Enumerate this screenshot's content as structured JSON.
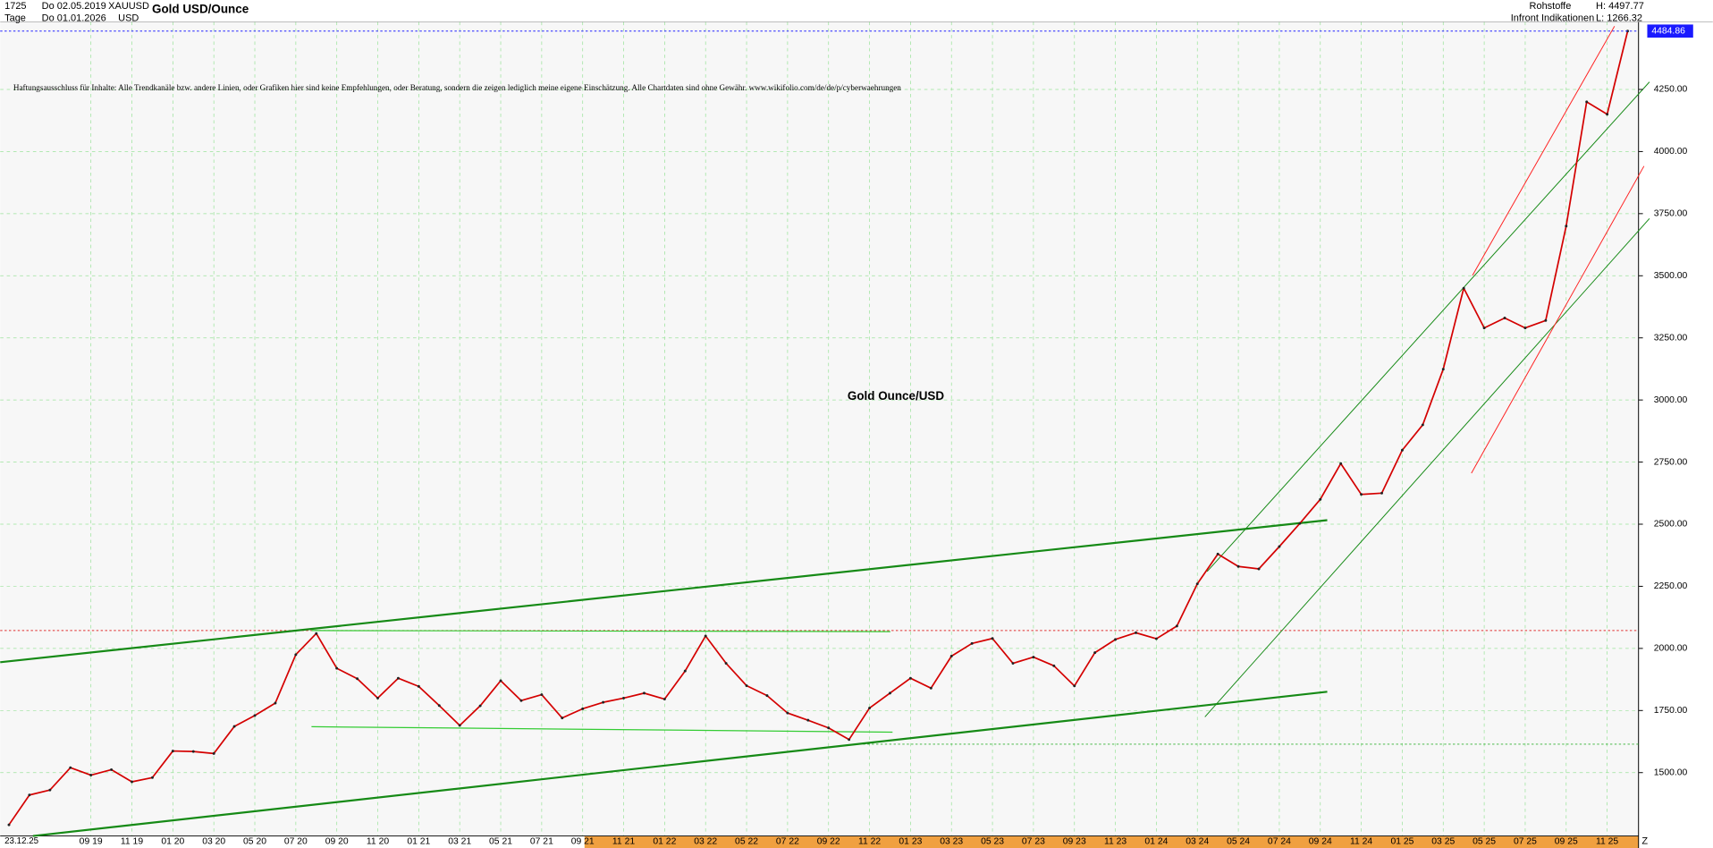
{
  "header": {
    "bars": "1725",
    "from_date": "Do 02.05.2019",
    "symbol": "XAUUSD",
    "title": "Gold USD/Ounce",
    "period": "Tage",
    "to_date": "Do 01.01.2026",
    "currency": "USD",
    "category": "Rohstoffe",
    "high": "H: 4497.77",
    "source": "Infront Indikationen",
    "low": "L: 1266.32"
  },
  "disclaimer": "Haftungsausschluss für Inhalte: Alle Trendkanäle bzw. andere Linien, oder Grafiken hier sind keine Empfehlungen, oder Beratung, sondern die zeigen lediglich meine eigene Einschätzung. Alle Chartdaten sind ohne Gewähr.  www.wikifolio.com/de/de/p/cyberwaehrungen",
  "chart_data": {
    "type": "line",
    "annotation": "Gold Ounce/USD",
    "color": "#d40000",
    "x_start_label": "23.12.25",
    "x_end_label": "Z",
    "categories": [
      null,
      null,
      null,
      null,
      "09 19",
      null,
      "11 19",
      null,
      "01 20",
      null,
      "03 20",
      null,
      "05 20",
      null,
      "07 20",
      null,
      "09 20",
      null,
      "11 20",
      null,
      "01 21",
      null,
      "03 21",
      null,
      "05 21",
      null,
      "07 21",
      null,
      "09 21",
      null,
      "11 21",
      null,
      "01 22",
      null,
      "03 22",
      null,
      "05 22",
      null,
      "07 22",
      null,
      "09 22",
      null,
      "11 22",
      null,
      "01 23",
      null,
      "03 23",
      null,
      "05 23",
      null,
      "07 23",
      null,
      "09 23",
      null,
      "11 23",
      null,
      "01 24",
      null,
      "03 24",
      null,
      "05 24",
      null,
      "07 24",
      null,
      "09 24",
      null,
      "11 24",
      null,
      "01 25",
      null,
      "03 25",
      null,
      "05 25",
      null,
      "07 25",
      null,
      "09 25",
      null,
      "11 25",
      null
    ],
    "values": [
      1290,
      1410,
      1430,
      1520,
      1490,
      1512,
      1463,
      1480,
      1587,
      1585,
      1577,
      1686,
      1730,
      1780,
      1975,
      2060,
      1920,
      1878,
      1800,
      1880,
      1847,
      1770,
      1690,
      1769,
      1870,
      1790,
      1814,
      1720,
      1757,
      1783,
      1800,
      1820,
      1796,
      1909,
      2050,
      1940,
      1850,
      1810,
      1740,
      1711,
      1680,
      1633,
      1760,
      1820,
      1880,
      1840,
      1969,
      2020,
      2040,
      1940,
      1965,
      1930,
      1849,
      1983,
      2036,
      2063,
      2039,
      2090,
      2260,
      2380,
      2330,
      2320,
      2410,
      2503,
      2600,
      2744,
      2620,
      2625,
      2798,
      2900,
      3124,
      3450,
      3290,
      3330,
      3290,
      3320,
      3700,
      4200,
      4150,
      4484.86
    ],
    "ylim": [
      1245,
      4522
    ],
    "yticks": [
      {
        "value": 1500,
        "label": "1500.00"
      },
      {
        "value": 1750,
        "label": "1750.00"
      },
      {
        "value": 2000,
        "label": "2000.00"
      },
      {
        "value": 2250,
        "label": "2250.00"
      },
      {
        "value": 2500,
        "label": "2500.00"
      },
      {
        "value": 2750,
        "label": "2750.00"
      },
      {
        "value": 3000,
        "label": "3000.00"
      },
      {
        "value": 3250,
        "label": "3250.00"
      },
      {
        "value": 3500,
        "label": "3500.00"
      },
      {
        "value": 3750,
        "label": "3750.00"
      },
      {
        "value": 4000,
        "label": "4000.00"
      },
      {
        "value": 4250,
        "label": "4250.00"
      }
    ],
    "grid": true
  }
}
